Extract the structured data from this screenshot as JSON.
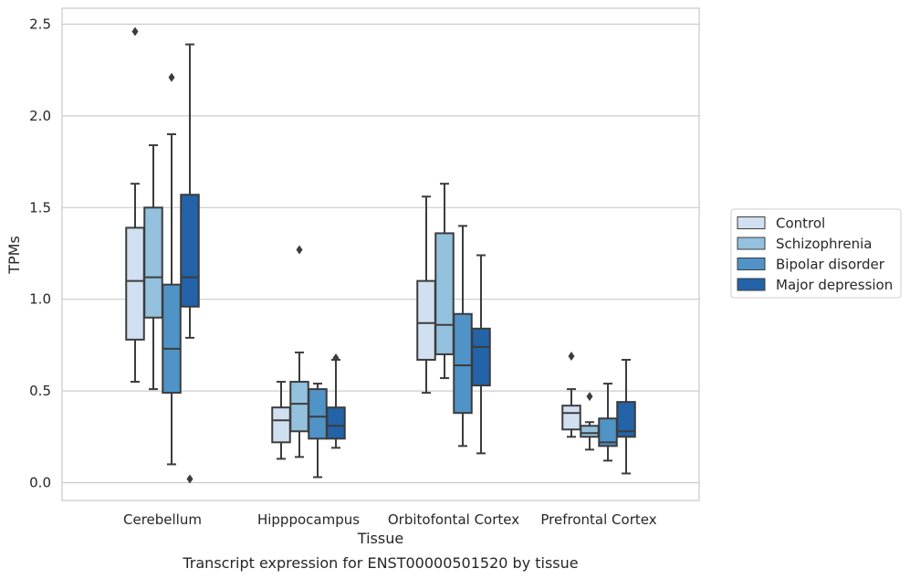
{
  "chart_data": {
    "type": "box",
    "title": "",
    "caption": "Transcript expression for ENST00000501520 by tissue",
    "xlabel": "Tissue",
    "ylabel": "TPMs",
    "ylim": [
      -0.1,
      2.59
    ],
    "yticks": [
      0.0,
      0.5,
      1.0,
      1.5,
      2.0,
      2.5
    ],
    "ytick_labels": [
      "0.0",
      "0.5",
      "1.0",
      "1.5",
      "2.0",
      "2.5"
    ],
    "grid": "horizontal",
    "legend_position": "outside-right",
    "categories": [
      "Cerebellum",
      "Hipppocampus",
      "Orbitofontal Cortex",
      "Prefrontal Cortex"
    ],
    "series": [
      {
        "name": "Control",
        "color": "#d1e0f0",
        "boxes": [
          {
            "whislo": 0.55,
            "q1": 0.78,
            "med": 1.1,
            "q3": 1.39,
            "whishi": 1.63,
            "fliers": [
              2.46
            ]
          },
          {
            "whislo": 0.13,
            "q1": 0.22,
            "med": 0.34,
            "q3": 0.41,
            "whishi": 0.55,
            "fliers": []
          },
          {
            "whislo": 0.49,
            "q1": 0.67,
            "med": 0.87,
            "q3": 1.1,
            "whishi": 1.56,
            "fliers": []
          },
          {
            "whislo": 0.25,
            "q1": 0.29,
            "med": 0.38,
            "q3": 0.42,
            "whishi": 0.51,
            "fliers": [
              0.69
            ]
          }
        ]
      },
      {
        "name": "Schizophrenia",
        "color": "#93c1de",
        "boxes": [
          {
            "whislo": 0.51,
            "q1": 0.9,
            "med": 1.12,
            "q3": 1.5,
            "whishi": 1.84,
            "fliers": []
          },
          {
            "whislo": 0.14,
            "q1": 0.28,
            "med": 0.43,
            "q3": 0.55,
            "whishi": 0.71,
            "fliers": [
              1.27
            ]
          },
          {
            "whislo": 0.57,
            "q1": 0.7,
            "med": 0.86,
            "q3": 1.36,
            "whishi": 1.63,
            "fliers": []
          },
          {
            "whislo": 0.18,
            "q1": 0.25,
            "med": 0.27,
            "q3": 0.31,
            "whishi": 0.33,
            "fliers": [
              0.47
            ]
          }
        ]
      },
      {
        "name": "Bipolar disorder",
        "color": "#4f93c7",
        "boxes": [
          {
            "whislo": 0.1,
            "q1": 0.49,
            "med": 0.73,
            "q3": 1.08,
            "whishi": 1.9,
            "fliers": [
              2.21
            ]
          },
          {
            "whislo": 0.03,
            "q1": 0.24,
            "med": 0.36,
            "q3": 0.51,
            "whishi": 0.54,
            "fliers": []
          },
          {
            "whislo": 0.2,
            "q1": 0.38,
            "med": 0.64,
            "q3": 0.92,
            "whishi": 1.4,
            "fliers": []
          },
          {
            "whislo": 0.12,
            "q1": 0.2,
            "med": 0.22,
            "q3": 0.35,
            "whishi": 0.54,
            "fliers": []
          }
        ]
      },
      {
        "name": "Major depression",
        "color": "#2363a8",
        "boxes": [
          {
            "whislo": 0.79,
            "q1": 0.96,
            "med": 1.12,
            "q3": 1.57,
            "whishi": 2.39,
            "fliers": [
              0.02
            ]
          },
          {
            "whislo": 0.19,
            "q1": 0.24,
            "med": 0.31,
            "q3": 0.41,
            "whishi": 0.67,
            "fliers": [
              0.68
            ]
          },
          {
            "whislo": 0.16,
            "q1": 0.53,
            "med": 0.74,
            "q3": 0.84,
            "whishi": 1.24,
            "fliers": []
          },
          {
            "whislo": 0.05,
            "q1": 0.25,
            "med": 0.28,
            "q3": 0.44,
            "whishi": 0.67,
            "fliers": []
          }
        ]
      }
    ]
  }
}
